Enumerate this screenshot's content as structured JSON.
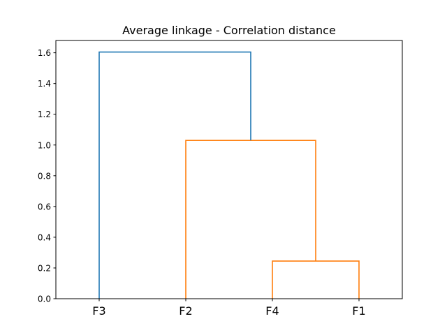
{
  "chart_data": {
    "type": "dendrogram",
    "title": "Average linkage - Correlation distance",
    "xlabel": "",
    "ylabel": "",
    "leaves": [
      "F3",
      "F2",
      "F4",
      "F1"
    ],
    "ylim": [
      0,
      1.68
    ],
    "yticks": [
      0.0,
      0.2,
      0.4,
      0.6,
      0.8,
      1.0,
      1.2,
      1.4,
      1.6
    ],
    "ytick_labels": [
      "0.0",
      "0.2",
      "0.4",
      "0.6",
      "0.8",
      "1.0",
      "1.2",
      "1.4",
      "1.6"
    ],
    "grid": false,
    "merges": [
      {
        "left": "F4",
        "right": "F1",
        "height": 0.245,
        "color": "#ff7f0e"
      },
      {
        "left": "F2",
        "right": "F4+F1",
        "height": 1.03,
        "color": "#ff7f0e"
      },
      {
        "left": "F3",
        "right": "F2+F4+F1",
        "height": 1.605,
        "color": "#1f77b4"
      }
    ]
  }
}
